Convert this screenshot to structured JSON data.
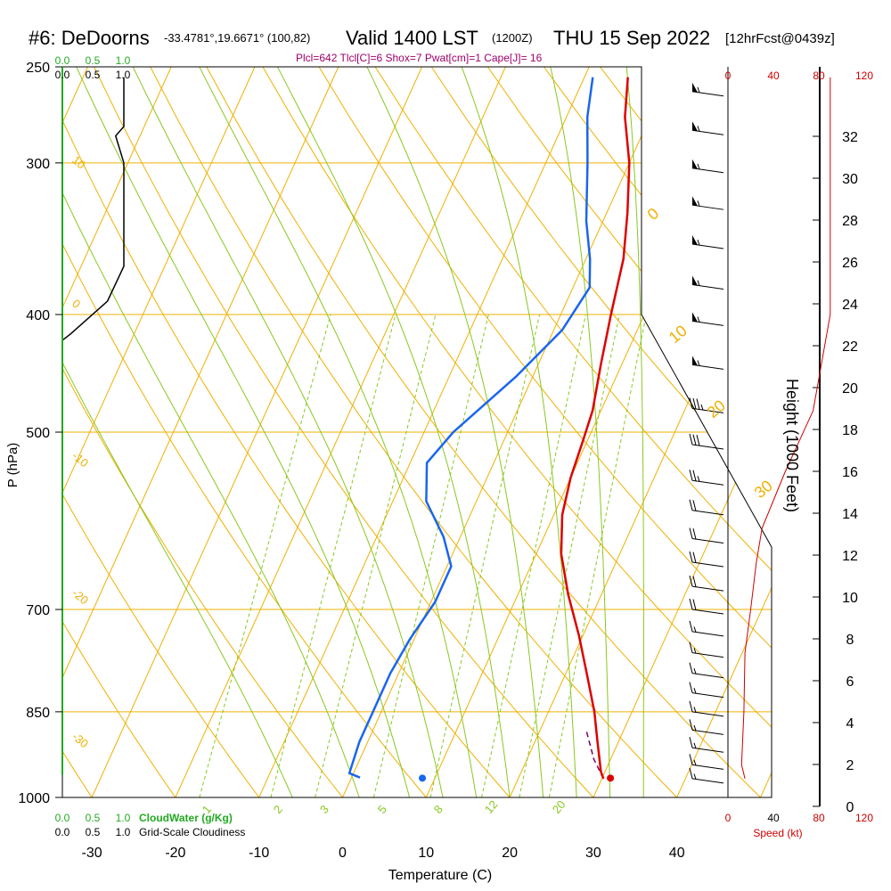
{
  "header": {
    "station": "#6: DeDoorns",
    "coords": "-33.4781°,19.6671° (100,82)",
    "valid": "Valid 1400 LST",
    "valid_z": "(1200Z)",
    "date": "THU 15 Sep 2022",
    "forecast": "[12hrFcst@0439z]",
    "indices": "Plcl=642 Tlcl[C]=6 Shox=7 Pwat[cm]=1 Cape[J]= 16"
  },
  "colors": {
    "temperature": "#dd0000",
    "dewpoint": "#1a66ee",
    "isobar": "#f0b000",
    "isotherm": "#f0b000",
    "dry_adiabat": "#f0b000",
    "moist_adiabat": "#88c820",
    "mixing_ratio": "#88c820",
    "cloud": "#000000",
    "cloud_axis": "#22aa22",
    "speed": "#cc0000",
    "parcel": "#7a0060"
  },
  "chart_data": {
    "type": "line",
    "subtype": "skew-T log-P sounding",
    "xlabel": "Temperature (C)",
    "ylabel": "P (hPa)",
    "x_ticks": [
      -30,
      -20,
      -10,
      0,
      10,
      20,
      30,
      40
    ],
    "y_ticks": [
      250,
      300,
      400,
      500,
      700,
      850,
      1000
    ],
    "xlim": [
      -34,
      44
    ],
    "ylim": [
      1000,
      250
    ],
    "height_axis": {
      "label": "Height (1000 Feet)",
      "ticks": [
        0,
        2,
        4,
        6,
        8,
        10,
        12,
        14,
        16,
        18,
        20,
        22,
        24,
        26,
        28,
        30,
        32
      ]
    },
    "speed_axis": {
      "label": "Speed (kt)",
      "ticks": [
        0,
        40,
        80,
        120
      ]
    },
    "cloud_axis": {
      "top_ticks": [
        "0.0",
        "0.5",
        "1.0"
      ],
      "bottom_ticks": [
        "0.0",
        "0.5",
        "1.0"
      ],
      "cloudwater_label": "CloudWater (g/Kg)",
      "cloudiness_label": "Grid-Scale Cloudiness"
    },
    "isotherm_labels": [
      "10",
      "0",
      "-10",
      "-20",
      "-30"
    ],
    "adiabat_labels": [
      "0",
      "10",
      "20",
      "30"
    ],
    "mixing_ratio_labels": [
      "1",
      "2",
      "3",
      "5",
      "8",
      "12",
      "20"
    ],
    "series": [
      {
        "name": "Temperature",
        "points": [
          [
            -4.8,
            255
          ],
          [
            -3,
            275
          ],
          [
            0,
            300
          ],
          [
            2.5,
            330
          ],
          [
            4.5,
            360
          ],
          [
            6,
            400
          ],
          [
            7.5,
            440
          ],
          [
            9,
            480
          ],
          [
            9.5,
            510
          ],
          [
            10,
            545
          ],
          [
            11,
            585
          ],
          [
            13,
            630
          ],
          [
            16,
            680
          ],
          [
            19.5,
            735
          ],
          [
            22.5,
            790
          ],
          [
            25.5,
            850
          ],
          [
            27.5,
            900
          ],
          [
            29.5,
            952
          ],
          [
            30.2,
            965
          ]
        ]
      },
      {
        "name": "Dewpoint",
        "points": [
          [
            -9,
            255
          ],
          [
            -7.5,
            275
          ],
          [
            -5,
            300
          ],
          [
            -2,
            335
          ],
          [
            0.5,
            360
          ],
          [
            2,
            380
          ],
          [
            1,
            412
          ],
          [
            -2,
            450
          ],
          [
            -6.5,
            500
          ],
          [
            -8,
            530
          ],
          [
            -6,
            570
          ],
          [
            -2,
            610
          ],
          [
            0.5,
            645
          ],
          [
            0.5,
            690
          ],
          [
            -0.5,
            740
          ],
          [
            -1,
            790
          ],
          [
            -1,
            850
          ],
          [
            -1,
            900
          ],
          [
            -0.5,
            955
          ],
          [
            1,
            963
          ]
        ]
      },
      {
        "name": "Parcel",
        "points": [
          [
            30.2,
            965
          ],
          [
            28,
            930
          ],
          [
            25.5,
            880
          ]
        ]
      }
    ],
    "surface_markers": {
      "dewpoint": [
        8.5,
        964
      ],
      "temperature": [
        31,
        964
      ]
    },
    "cloud_fraction": [
      [
        0.75,
        255
      ],
      [
        0.75,
        280
      ],
      [
        0.65,
        285
      ],
      [
        0.75,
        300
      ],
      [
        0.75,
        340
      ],
      [
        0.75,
        365
      ],
      [
        0.55,
        390
      ],
      [
        0.1,
        415
      ],
      [
        0,
        420
      ]
    ],
    "wind_speed_profile": [
      [
        90,
        255
      ],
      [
        90,
        400
      ],
      [
        75,
        480
      ],
      [
        50,
        540
      ],
      [
        30,
        600
      ],
      [
        25,
        640
      ],
      [
        20,
        700
      ],
      [
        15,
        760
      ],
      [
        14,
        850
      ],
      [
        12,
        940
      ],
      [
        15,
        965
      ]
    ],
    "wind_barbs": [
      {
        "p": 262,
        "speed_kt": 55
      },
      {
        "p": 282,
        "speed_kt": 55
      },
      {
        "p": 303,
        "speed_kt": 55
      },
      {
        "p": 325,
        "speed_kt": 55
      },
      {
        "p": 350,
        "speed_kt": 55
      },
      {
        "p": 378,
        "speed_kt": 55
      },
      {
        "p": 405,
        "speed_kt": 55
      },
      {
        "p": 440,
        "speed_kt": 55
      },
      {
        "p": 478,
        "speed_kt": 35
      },
      {
        "p": 512,
        "speed_kt": 30
      },
      {
        "p": 548,
        "speed_kt": 25
      },
      {
        "p": 580,
        "speed_kt": 20
      },
      {
        "p": 612,
        "speed_kt": 20
      },
      {
        "p": 640,
        "speed_kt": 20
      },
      {
        "p": 670,
        "speed_kt": 20
      },
      {
        "p": 700,
        "speed_kt": 20
      },
      {
        "p": 730,
        "speed_kt": 15
      },
      {
        "p": 760,
        "speed_kt": 15
      },
      {
        "p": 790,
        "speed_kt": 15
      },
      {
        "p": 820,
        "speed_kt": 15
      },
      {
        "p": 850,
        "speed_kt": 15
      },
      {
        "p": 880,
        "speed_kt": 15
      },
      {
        "p": 910,
        "speed_kt": 15
      },
      {
        "p": 940,
        "speed_kt": 15
      },
      {
        "p": 965,
        "speed_kt": 15
      }
    ]
  }
}
